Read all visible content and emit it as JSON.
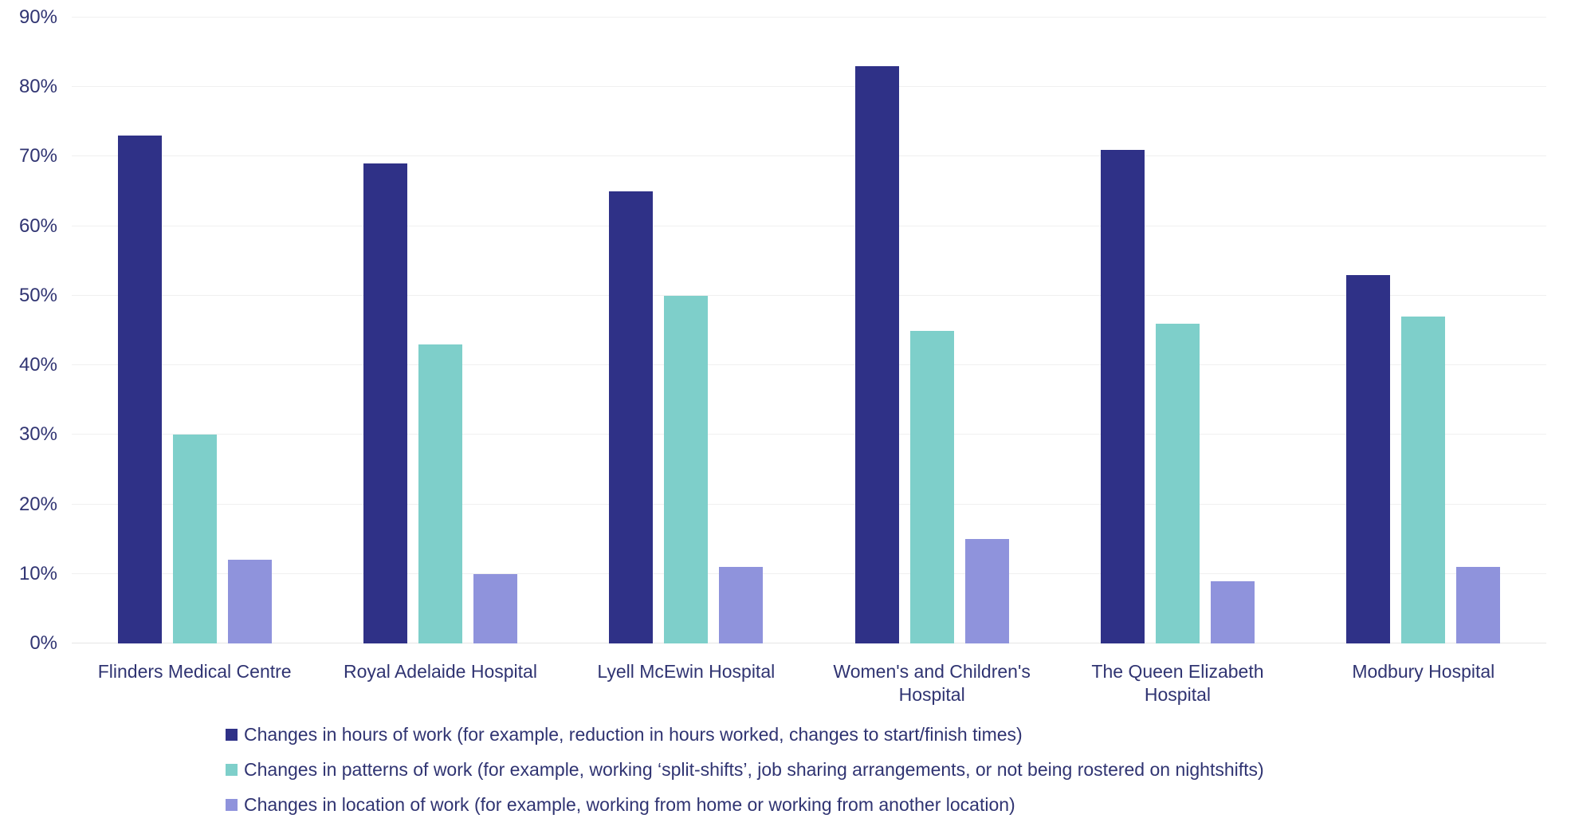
{
  "chart_data": {
    "type": "bar",
    "title": "",
    "xlabel": "",
    "ylabel": "",
    "ylim": [
      0,
      90
    ],
    "ytick_step": 10,
    "ytick_labels": [
      "0%",
      "10%",
      "20%",
      "30%",
      "40%",
      "50%",
      "60%",
      "70%",
      "80%",
      "90%"
    ],
    "grid": true,
    "legend_position": "bottom-left",
    "categories": [
      "Flinders Medical Centre",
      "Royal Adelaide Hospital",
      "Lyell McEwin Hospital",
      "Women's and Children's Hospital",
      "The Queen Elizabeth Hospital",
      "Modbury Hospital"
    ],
    "series": [
      {
        "name": "Changes in hours of work (for example, reduction in hours worked, changes to start/finish times)",
        "color": "#2f3187",
        "values": [
          73,
          69,
          65,
          83,
          71,
          53
        ]
      },
      {
        "name": "Changes in patterns of work (for example, working ‘split-shifts’, job sharing arrangements, or not being rostered on nightshifts)",
        "color": "#7ecfca",
        "values": [
          30,
          43,
          50,
          45,
          46,
          47
        ]
      },
      {
        "name": "Changes in location of work (for example, working from home or working from another location)",
        "color": "#8f93dc",
        "values": [
          12,
          10,
          11,
          15,
          9,
          11
        ]
      }
    ]
  },
  "colors": {
    "text": "#303472",
    "gridline": "#f0f0f0",
    "baseline": "#e5e5e5",
    "background": "#ffffff"
  }
}
